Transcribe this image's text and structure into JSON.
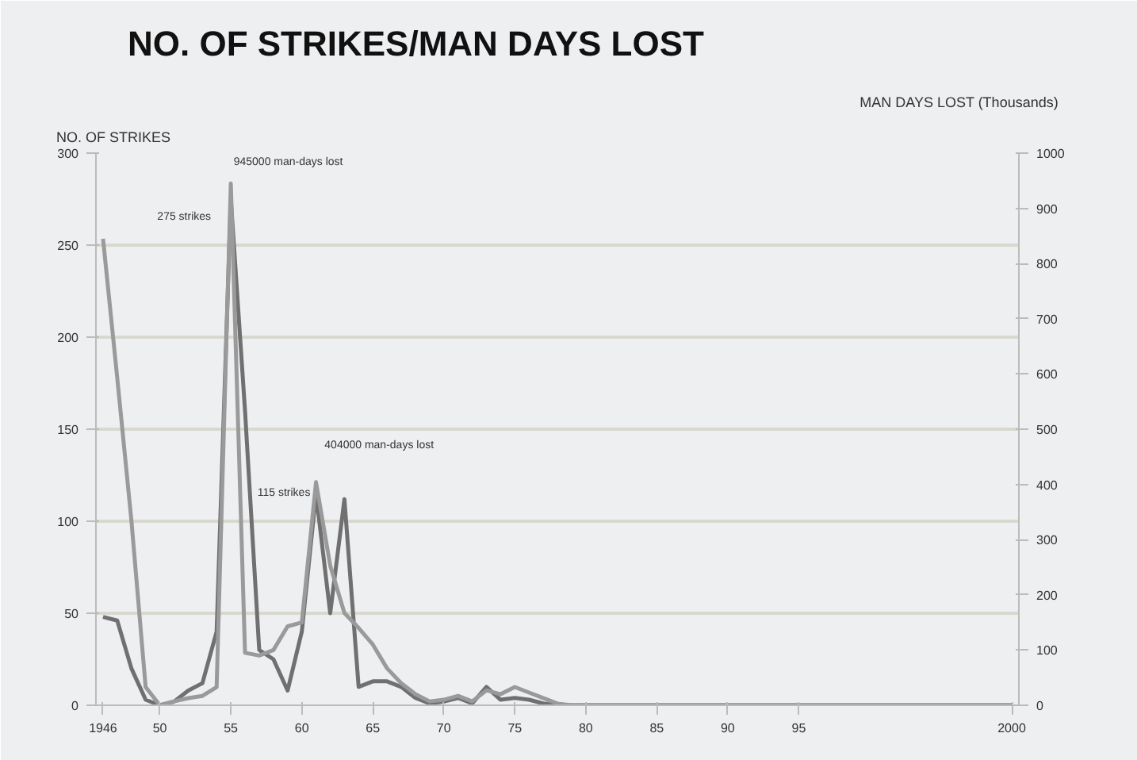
{
  "chart_data": {
    "type": "line",
    "title": "NO. OF STRIKES/MAN DAYS LOST",
    "ylabel": "NO. OF STRIKES",
    "y2label": "MAN DAYS LOST (Thousands)",
    "categories": [
      "1946",
      null,
      null,
      null,
      "50",
      null,
      null,
      null,
      null,
      "55",
      null,
      null,
      null,
      null,
      "60",
      null,
      null,
      null,
      null,
      "65",
      null,
      null,
      null,
      null,
      "70",
      null,
      null,
      null,
      null,
      "75",
      null,
      null,
      null,
      null,
      "80",
      null,
      null,
      null,
      null,
      "85",
      null,
      null,
      null,
      null,
      "90",
      null,
      null,
      null,
      null,
      "95",
      null,
      null,
      null,
      null,
      null,
      null,
      null,
      null,
      null,
      null,
      null,
      null,
      null,
      null,
      "2000"
    ],
    "series": [
      {
        "color": "#707070",
        "values": [
          48,
          46,
          20,
          3,
          0,
          2,
          8,
          12,
          40,
          275,
          160,
          30,
          25,
          8,
          40,
          115,
          50,
          112,
          10,
          13,
          13,
          10,
          4,
          1,
          2,
          4,
          1,
          10,
          3,
          4,
          3,
          1,
          0,
          0,
          0,
          0,
          0,
          0,
          0,
          0,
          0,
          0,
          0,
          0,
          0,
          0,
          0,
          0,
          0,
          0,
          0,
          0,
          0,
          0,
          0,
          0,
          0,
          0,
          0,
          0,
          0,
          0,
          0,
          0,
          0
        ]
      },
      {
        "color": "#9a9a9a",
        "axis": "y2",
        "values": [
          845,
          593,
          334,
          33,
          0,
          7,
          13,
          17,
          33,
          945,
          95,
          90,
          100,
          143,
          150,
          404,
          253,
          167,
          140,
          110,
          67,
          40,
          20,
          7,
          10,
          17,
          7,
          27,
          20,
          33,
          23,
          13,
          3,
          0,
          0,
          0,
          0,
          0,
          0,
          0,
          0,
          0,
          0,
          0,
          0,
          0,
          0,
          0,
          0,
          0,
          0,
          0,
          0,
          0,
          0,
          0,
          0,
          0,
          0,
          0,
          0,
          0,
          0,
          0,
          0
        ]
      }
    ],
    "ylim": [
      0,
      300
    ],
    "yticks": [
      0,
      50,
      100,
      150,
      200,
      250,
      300
    ],
    "y2lim": [
      0,
      1000
    ],
    "y2ticks": [
      0,
      100,
      200,
      300,
      400,
      500,
      600,
      700,
      800,
      900,
      1000
    ],
    "grid": "y",
    "annotations": [
      "275 strikes",
      "945000 man-days lost",
      "115 strikes",
      "404000 man-days lost"
    ]
  }
}
